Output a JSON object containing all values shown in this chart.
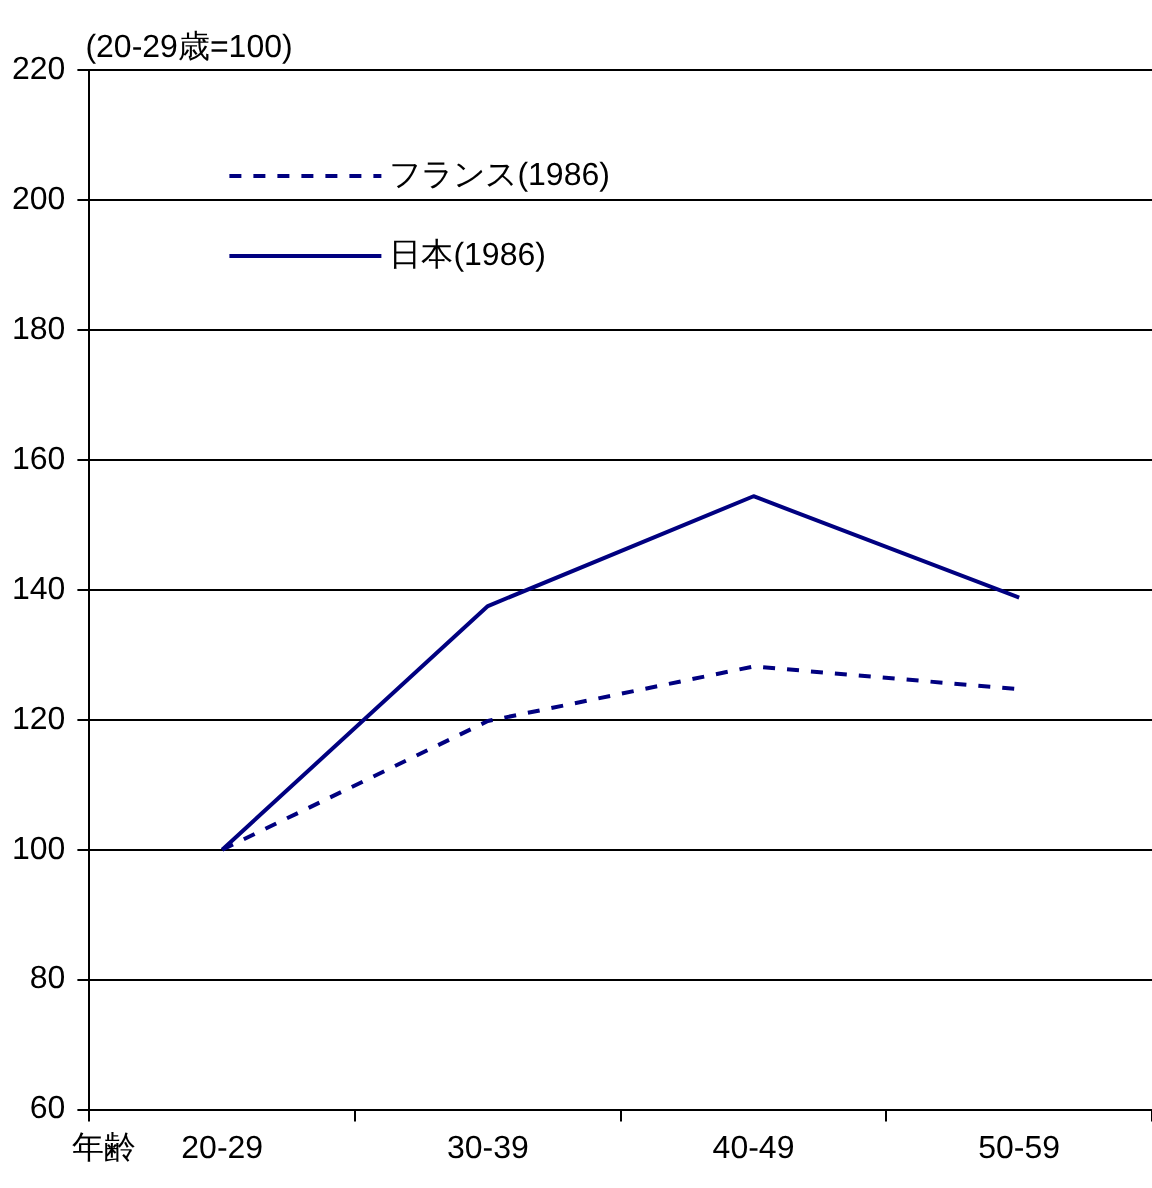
{
  "chart_data": {
    "type": "line",
    "ylabel": "(20-29歳=100)",
    "xlabel": "年齢",
    "categories": [
      "20-29",
      "30-39",
      "40-49",
      "50-59"
    ],
    "series": [
      {
        "name": "フランス(1986)",
        "color": "#000080",
        "values": [
          100,
          119.8,
          128.2,
          124.7
        ],
        "line_style": "dashed"
      },
      {
        "name": "日本(1986)",
        "color": "#000080",
        "values": [
          100,
          137.5,
          154.4,
          138.8
        ],
        "line_style": "solid"
      }
    ],
    "ylim": [
      60,
      220
    ],
    "yticks": [
      60,
      80,
      100,
      120,
      140,
      160,
      180,
      200,
      220
    ],
    "grid": "y",
    "legend": "top left",
    "marker": "none"
  }
}
